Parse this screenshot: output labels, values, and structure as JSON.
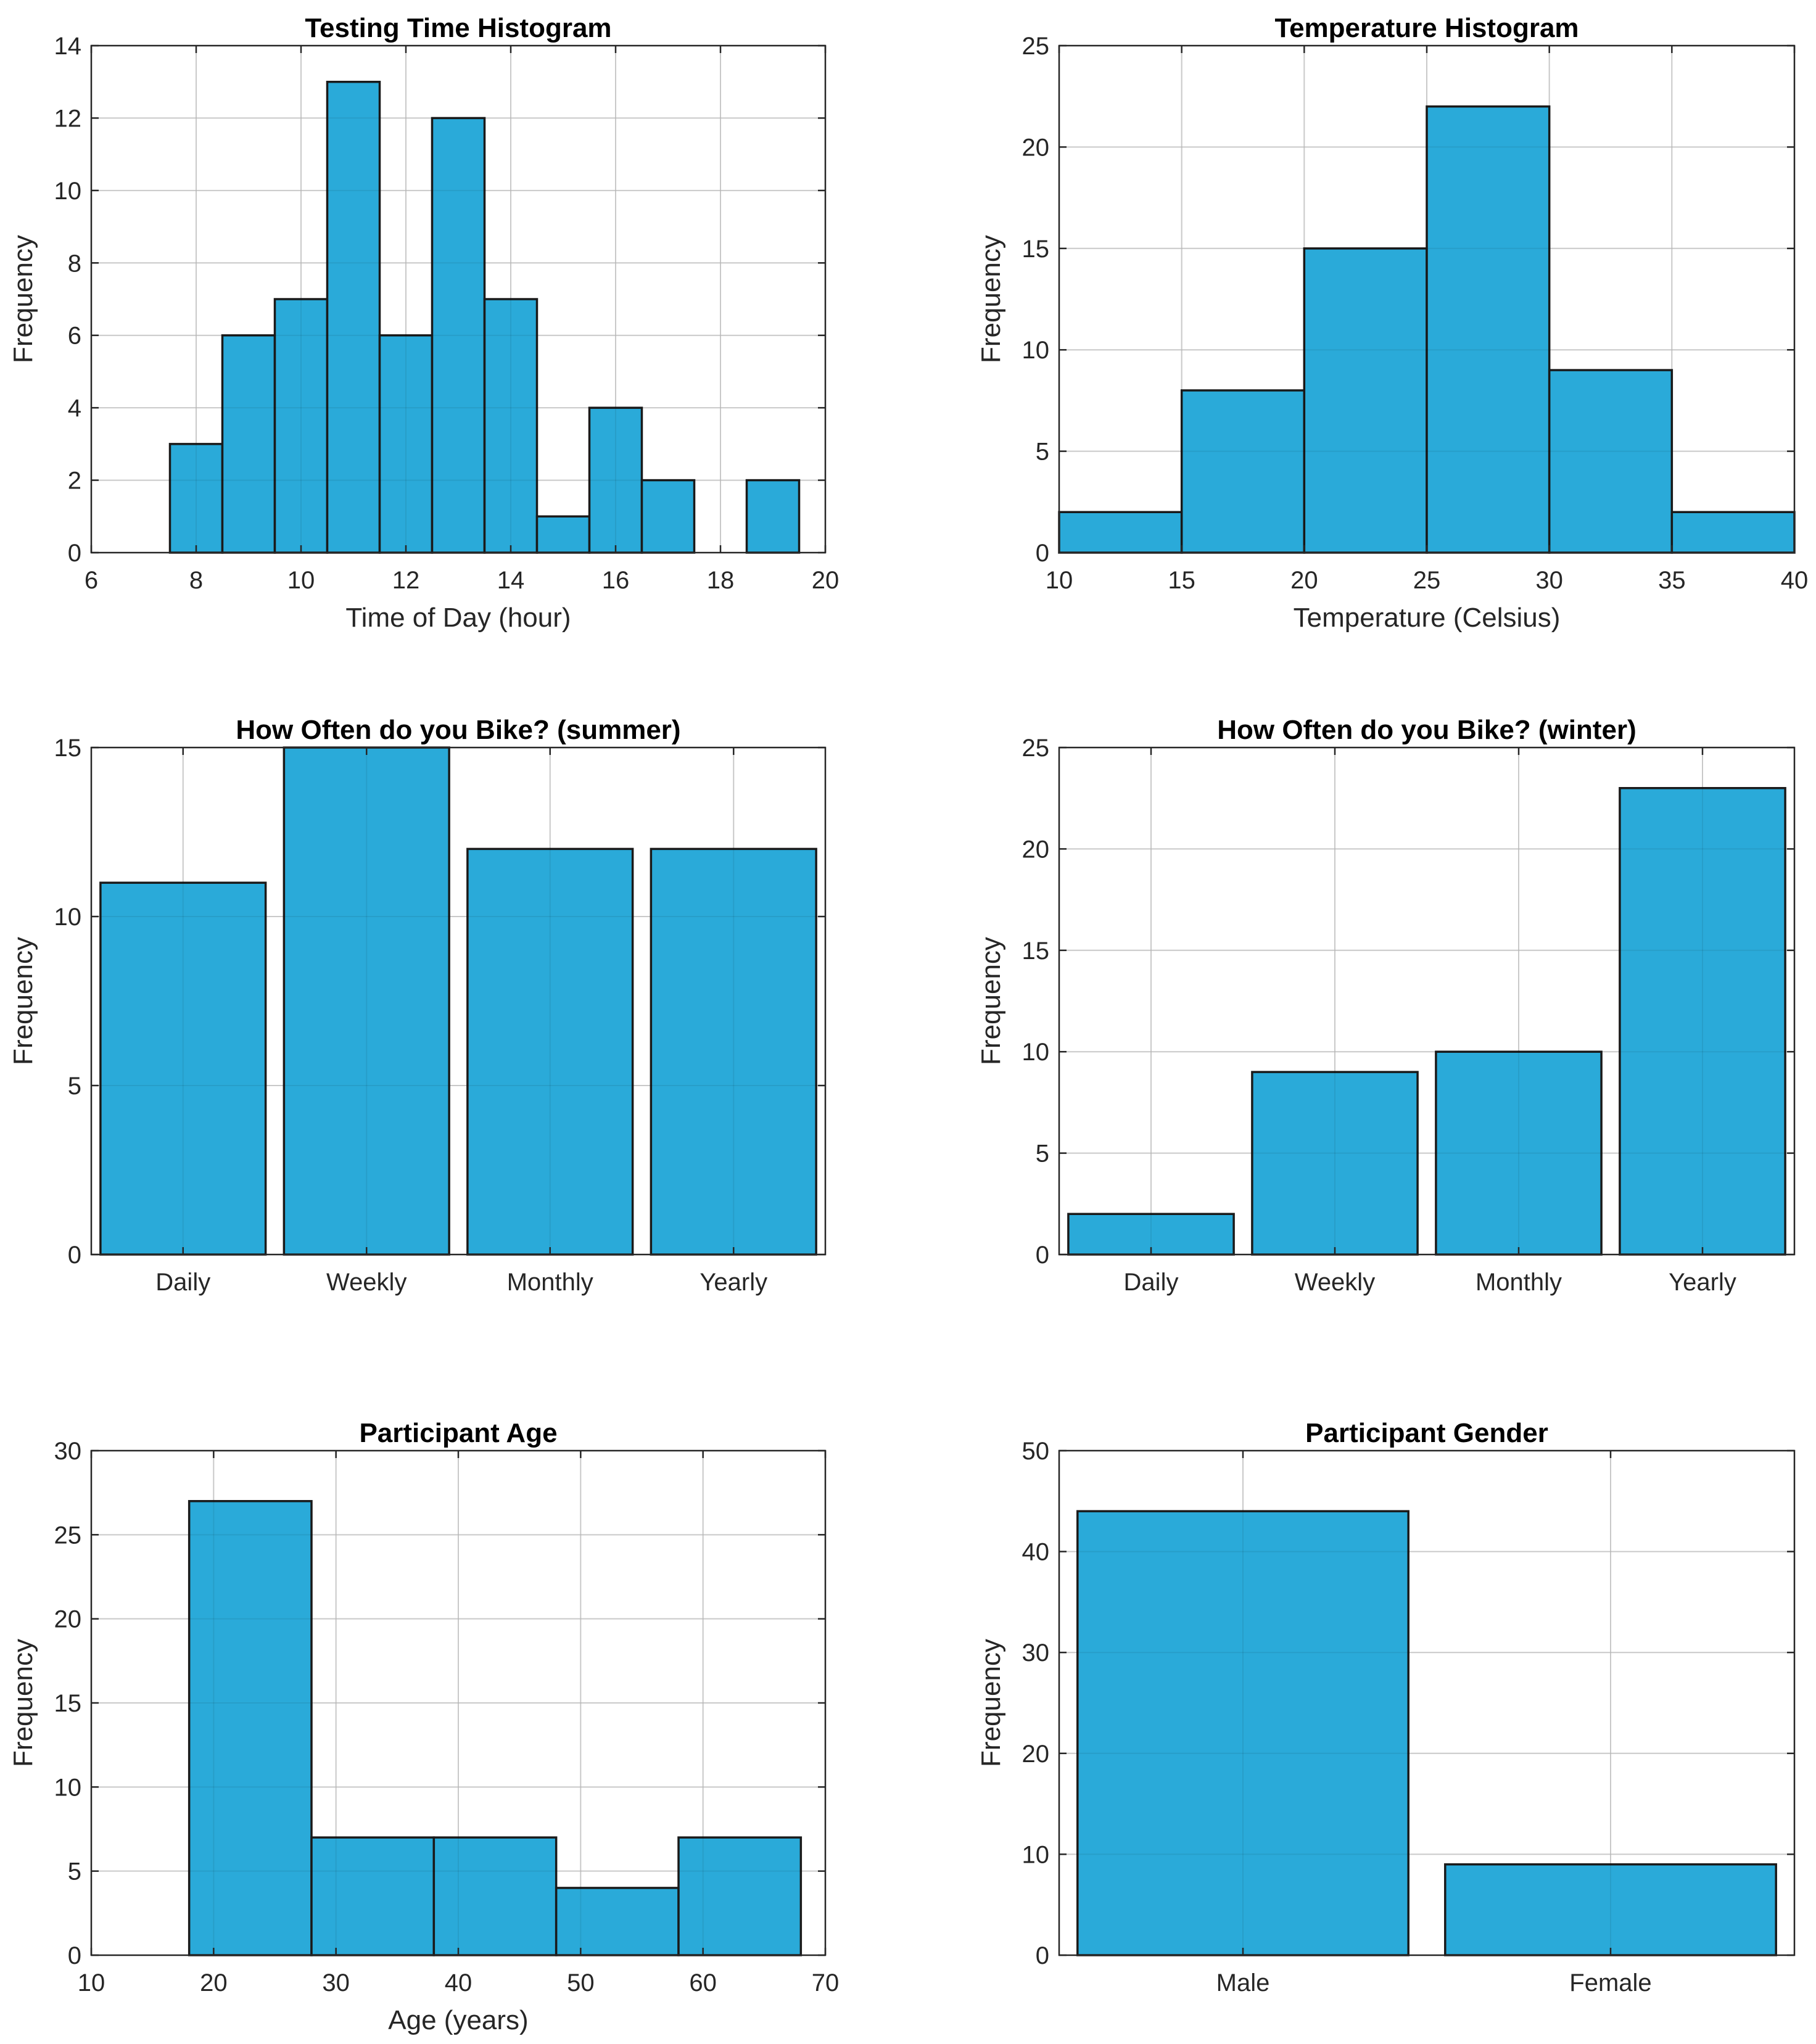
{
  "colors": {
    "bar_fill": "#26a8d8",
    "bar_edge": "#1a1a1a",
    "grid": "#d9d9d9",
    "axis": "#262626"
  },
  "chart_data": [
    {
      "type": "histogram",
      "title": "Testing Time Histogram",
      "xlabel": "Time of Day (hour)",
      "ylabel": "Frequency",
      "xlim": [
        6,
        20
      ],
      "ylim": [
        0,
        14
      ],
      "xticks": [
        6,
        8,
        10,
        12,
        14,
        16,
        18,
        20
      ],
      "yticks": [
        0,
        2,
        4,
        6,
        8,
        10,
        12,
        14
      ],
      "grid": true,
      "bins": [
        {
          "start": 7.5,
          "end": 8.5,
          "count": 3
        },
        {
          "start": 8.5,
          "end": 9.5,
          "count": 6
        },
        {
          "start": 9.5,
          "end": 10.5,
          "count": 7
        },
        {
          "start": 10.5,
          "end": 11.5,
          "count": 13
        },
        {
          "start": 11.5,
          "end": 12.5,
          "count": 6
        },
        {
          "start": 12.5,
          "end": 13.5,
          "count": 12
        },
        {
          "start": 13.5,
          "end": 14.5,
          "count": 7
        },
        {
          "start": 14.5,
          "end": 15.5,
          "count": 1
        },
        {
          "start": 15.5,
          "end": 16.5,
          "count": 4
        },
        {
          "start": 16.5,
          "end": 17.5,
          "count": 2
        },
        {
          "start": 17.5,
          "end": 18.5,
          "count": 0
        },
        {
          "start": 18.5,
          "end": 19.5,
          "count": 2
        }
      ]
    },
    {
      "type": "histogram",
      "title": "Temperature Histogram",
      "xlabel": "Temperature (Celsius)",
      "ylabel": "Frequency",
      "xlim": [
        10,
        40
      ],
      "ylim": [
        0,
        25
      ],
      "xticks": [
        10,
        15,
        20,
        25,
        30,
        35,
        40
      ],
      "yticks": [
        0,
        5,
        10,
        15,
        20,
        25
      ],
      "grid": true,
      "bins": [
        {
          "start": 10,
          "end": 15,
          "count": 2
        },
        {
          "start": 15,
          "end": 20,
          "count": 8
        },
        {
          "start": 20,
          "end": 25,
          "count": 15
        },
        {
          "start": 25,
          "end": 30,
          "count": 22
        },
        {
          "start": 30,
          "end": 35,
          "count": 9
        },
        {
          "start": 35,
          "end": 40,
          "count": 2
        }
      ]
    },
    {
      "type": "bar",
      "title": "How Often do you Bike? (summer)",
      "xlabel": "",
      "ylabel": "Frequency",
      "ylim": [
        0,
        15
      ],
      "yticks": [
        0,
        5,
        10,
        15
      ],
      "grid": true,
      "categories": [
        "Daily",
        "Weekly",
        "Monthly",
        "Yearly"
      ],
      "values": [
        11,
        15,
        12,
        12
      ]
    },
    {
      "type": "bar",
      "title": "How Often do you Bike? (winter)",
      "xlabel": "",
      "ylabel": "Frequency",
      "ylim": [
        0,
        25
      ],
      "yticks": [
        0,
        5,
        10,
        15,
        20,
        25
      ],
      "grid": true,
      "categories": [
        "Daily",
        "Weekly",
        "Monthly",
        "Yearly"
      ],
      "values": [
        2,
        9,
        10,
        23
      ]
    },
    {
      "type": "histogram",
      "title": "Participant Age",
      "xlabel": "Age (years)",
      "ylabel": "Frequency",
      "xlim": [
        10,
        70
      ],
      "ylim": [
        0,
        30
      ],
      "xticks": [
        10,
        20,
        30,
        40,
        50,
        60,
        70
      ],
      "yticks": [
        0,
        5,
        10,
        15,
        20,
        25,
        30
      ],
      "grid": true,
      "bins": [
        {
          "start": 18,
          "end": 28,
          "count": 27
        },
        {
          "start": 28,
          "end": 38,
          "count": 7
        },
        {
          "start": 38,
          "end": 48,
          "count": 7
        },
        {
          "start": 48,
          "end": 58,
          "count": 4
        },
        {
          "start": 58,
          "end": 68,
          "count": 7
        }
      ]
    },
    {
      "type": "bar",
      "title": "Participant Gender",
      "xlabel": "",
      "ylabel": "Frequency",
      "ylim": [
        0,
        50
      ],
      "yticks": [
        0,
        10,
        20,
        30,
        40,
        50
      ],
      "grid": true,
      "categories": [
        "Male",
        "Female"
      ],
      "values": [
        44,
        9
      ]
    }
  ]
}
